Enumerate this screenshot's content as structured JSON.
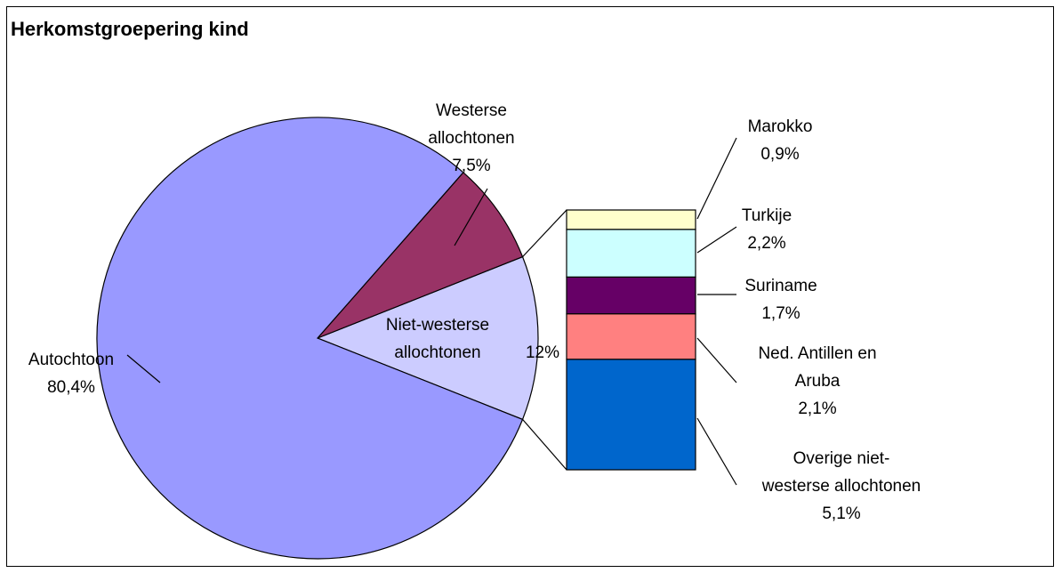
{
  "chart_data": {
    "type": "pie",
    "title": "Herkomstgroepering kind",
    "pie": {
      "slices": [
        {
          "name": "Autochtoon",
          "value": 80.4,
          "value_label": "80,4%",
          "label_lines": [
            "Autochtoon",
            "80,4%"
          ],
          "color": "#9999ff"
        },
        {
          "name": "Westerse allochtonen",
          "value": 7.5,
          "value_label": "7,5%",
          "label_lines": [
            "Westerse",
            "allochtonen",
            "7,5%"
          ],
          "color": "#993366"
        },
        {
          "name": "Niet-westerse allochtonen",
          "value": 12,
          "value_label": "12%",
          "label_lines": [
            "Niet-westerse",
            "allochtonen",
            "12%"
          ],
          "color": "#ccccff"
        }
      ]
    },
    "breakdown": {
      "type": "stacked-bar",
      "of": "Niet-westerse allochtonen",
      "segments": [
        {
          "name": "Marokko",
          "value": 0.9,
          "value_label": "0,9%",
          "label_lines": [
            "Marokko",
            "0,9%"
          ],
          "color": "#ffffcc"
        },
        {
          "name": "Turkije",
          "value": 2.2,
          "value_label": "2,2%",
          "label_lines": [
            "Turkije",
            "2,2%"
          ],
          "color": "#ccffff"
        },
        {
          "name": "Suriname",
          "value": 1.7,
          "value_label": "1,7%",
          "label_lines": [
            "Suriname",
            "1,7%"
          ],
          "color": "#660066"
        },
        {
          "name": "Ned. Antillen en Aruba",
          "value": 2.1,
          "value_label": "2,1%",
          "label_lines": [
            "Ned. Antillen en",
            "Aruba",
            "2,1%"
          ],
          "color": "#ff8080"
        },
        {
          "name": "Overige niet-westerse allochtonen",
          "value": 5.1,
          "value_label": "5,1%",
          "label_lines": [
            "Overige niet-",
            "westerse allochtonen",
            "5,1%"
          ],
          "color": "#0066cc"
        }
      ]
    }
  }
}
